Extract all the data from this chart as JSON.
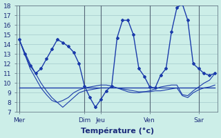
{
  "background_color": "#cceee8",
  "grid_major_color": "#aacfcf",
  "grid_minor_color": "#bbdddd",
  "line_color": "#1a3aaa",
  "ylim": [
    7,
    18
  ],
  "yticks": [
    7,
    8,
    9,
    10,
    11,
    12,
    13,
    14,
    15,
    16,
    17,
    18
  ],
  "xlabel": "Température (°c)",
  "xlabel_fontsize": 8,
  "tick_fontsize": 6.5,
  "day_labels": [
    "Mer",
    "Dim",
    "Jeu",
    "Ven",
    "Sar"
  ],
  "day_x": [
    0,
    12,
    15,
    24,
    33
  ],
  "vline_x": [
    0,
    12,
    15,
    24,
    33
  ],
  "n_points": 37,
  "series0": [
    14.5,
    13.0,
    11.8,
    11.0,
    11.5,
    12.5,
    13.5,
    14.5,
    14.2,
    13.8,
    13.2,
    12.0,
    9.7,
    8.5,
    7.5,
    8.3,
    9.2,
    9.7,
    14.7,
    16.5,
    16.5,
    15.0,
    11.5,
    10.7,
    9.6,
    9.5,
    10.8,
    11.5,
    15.3,
    17.8,
    18.2,
    16.5,
    12.0,
    11.5,
    11.0,
    10.8,
    11.0
  ],
  "series1": [
    9.5,
    9.5,
    9.5,
    9.5,
    9.5,
    9.5,
    9.5,
    9.5,
    9.5,
    9.5,
    9.5,
    9.5,
    9.5,
    9.5,
    9.5,
    9.5,
    9.5,
    9.5,
    9.5,
    9.5,
    9.5,
    9.5,
    9.5,
    9.5,
    9.5,
    9.5,
    9.5,
    9.5,
    9.5,
    9.5,
    9.5,
    9.5,
    9.5,
    9.5,
    9.5,
    9.5,
    9.5
  ],
  "series2": [
    14.5,
    13.2,
    12.0,
    11.0,
    10.0,
    9.2,
    8.5,
    8.0,
    7.5,
    8.0,
    8.5,
    9.0,
    9.2,
    9.3,
    9.4,
    9.5,
    9.5,
    9.5,
    9.5,
    9.4,
    9.3,
    9.2,
    9.1,
    9.1,
    9.1,
    9.2,
    9.2,
    9.3,
    9.4,
    9.5,
    8.7,
    8.5,
    9.0,
    9.3,
    9.5,
    9.6,
    9.8
  ],
  "series3": [
    14.5,
    13.0,
    11.5,
    10.5,
    9.5,
    8.8,
    8.2,
    8.0,
    8.2,
    8.5,
    9.0,
    9.3,
    9.5,
    9.6,
    9.7,
    9.8,
    9.8,
    9.7,
    9.5,
    9.3,
    9.1,
    9.0,
    9.0,
    9.1,
    9.2,
    9.4,
    9.6,
    9.7,
    9.8,
    9.8,
    8.8,
    8.7,
    9.2,
    9.6,
    10.0,
    10.3,
    11.0
  ]
}
